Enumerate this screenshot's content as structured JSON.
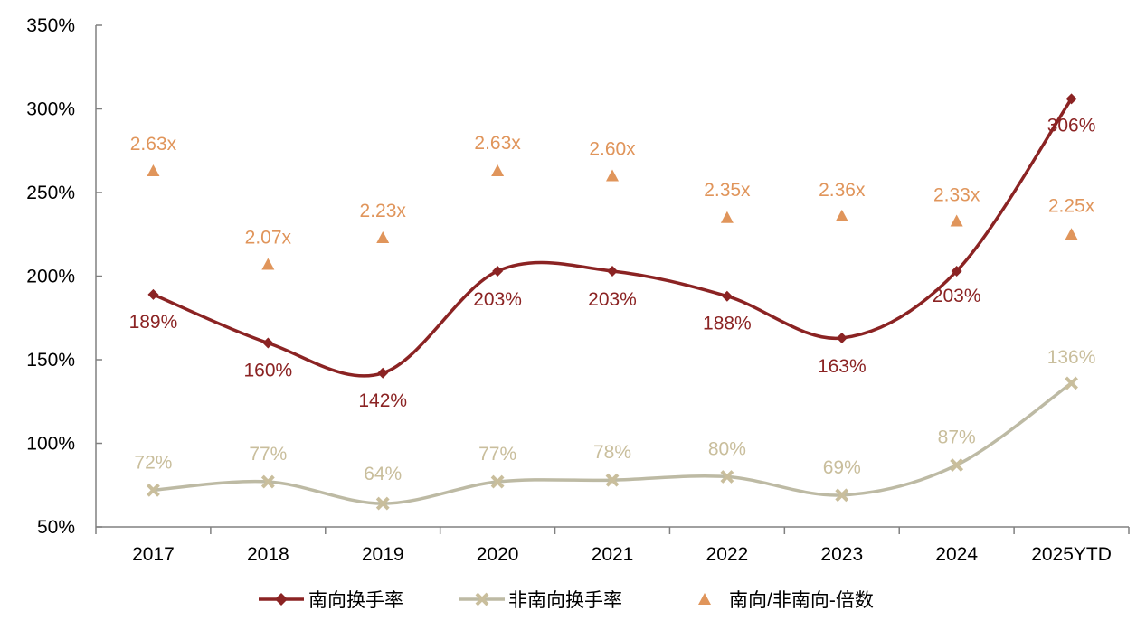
{
  "chart_data": {
    "type": "line",
    "title": "",
    "xlabel": "",
    "ylabel": "",
    "categories": [
      "2017",
      "2018",
      "2019",
      "2020",
      "2021",
      "2022",
      "2023",
      "2024",
      "2025YTD"
    ],
    "ylim": [
      50,
      350
    ],
    "yticks": [
      50,
      100,
      150,
      200,
      250,
      300,
      350
    ],
    "ytick_labels": [
      "50%",
      "100%",
      "150%",
      "200%",
      "250%",
      "300%",
      "350%"
    ],
    "grid": false,
    "legend_position": "bottom",
    "series": [
      {
        "name": "南向换手率",
        "type": "line",
        "marker": "diamond",
        "color": "#8B2323",
        "values": [
          189,
          160,
          142,
          203,
          203,
          188,
          163,
          203,
          306
        ],
        "labels": [
          "189%",
          "160%",
          "142%",
          "203%",
          "203%",
          "188%",
          "163%",
          "203%",
          "306%"
        ]
      },
      {
        "name": "非南向换手率",
        "type": "line",
        "marker": "x",
        "color": "#BDBAA4",
        "label_color": "#C9BE9C",
        "values": [
          72,
          77,
          64,
          77,
          78,
          80,
          69,
          87,
          136
        ],
        "labels": [
          "72%",
          "77%",
          "64%",
          "77%",
          "78%",
          "80%",
          "69%",
          "87%",
          "136%"
        ]
      },
      {
        "name": "南向/非南向-倍数",
        "type": "scatter",
        "marker": "triangle",
        "color": "#E0955B",
        "values": [
          2.63,
          2.07,
          2.23,
          2.63,
          2.6,
          2.35,
          2.36,
          2.33,
          2.25
        ],
        "labels": [
          "2.63x",
          "2.07x",
          "2.23x",
          "2.63x",
          "2.60x",
          "2.35x",
          "2.36x",
          "2.33x",
          "2.25x"
        ]
      }
    ]
  }
}
